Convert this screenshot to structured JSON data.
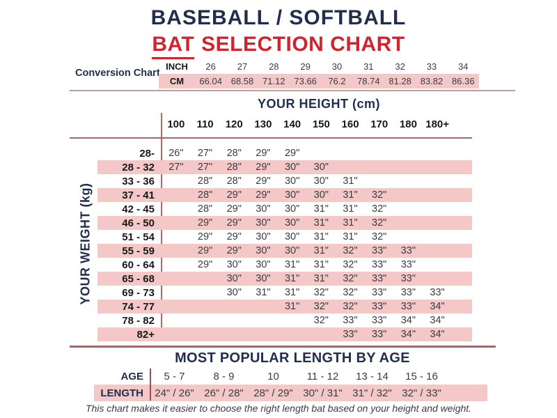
{
  "title": {
    "line1": "BASEBALL / SOFTBALL",
    "line2_underlined": "BAT",
    "line2_rest": "SELECTION CHART"
  },
  "conversion": {
    "label": "Conversion Chart",
    "inch_label": "INCH",
    "cm_label": "CM"
  },
  "main_chart": {
    "height_axis_label": "YOUR HEIGHT (cm)",
    "weight_axis_label": "YOUR WEIGHT (kg)"
  },
  "age_table": {
    "title": "MOST POPULAR LENGTH BY AGE",
    "age_label": "AGE",
    "length_label": "LENGTH"
  },
  "footer": "This chart makes it easier to choose the right length bat based on your height and weight.",
  "colors": {
    "navy": "#1f2d4f",
    "red": "#d2232e",
    "pink": "#f4c8c6",
    "line_rose": "#c79c9c",
    "line_maroon": "#9c6a6a",
    "vline_red": "#c4625c",
    "vline_dark": "#8d5252",
    "text_dark": "#3a3b42",
    "text_black": "#17181d"
  },
  "chart_data": {
    "type": "table",
    "title": "BASEBALL / SOFTBALL BAT SELECTION CHART",
    "conversion": {
      "inch": [
        "26",
        "27",
        "28",
        "29",
        "30",
        "31",
        "32",
        "33",
        "34"
      ],
      "cm": [
        "66.04",
        "68.58",
        "71.12",
        "73.66",
        "76.2",
        "78.74",
        "81.28",
        "83.82",
        "86.36"
      ]
    },
    "height_cm_columns": [
      "100",
      "110",
      "120",
      "130",
      "140",
      "150",
      "160",
      "170",
      "180",
      "180+"
    ],
    "rows": [
      {
        "weight": "28-",
        "values": [
          "26\"",
          "27\"",
          "28\"",
          "29\"",
          "29\"",
          "",
          "",
          "",
          "",
          ""
        ]
      },
      {
        "weight": "28 - 32",
        "values": [
          "27\"",
          "27\"",
          "28\"",
          "29\"",
          "30\"",
          "30\"",
          "",
          "",
          "",
          ""
        ]
      },
      {
        "weight": "33 - 36",
        "values": [
          "",
          "28\"",
          "28\"",
          "29\"",
          "30\"",
          "30\"",
          "31\"",
          "",
          "",
          ""
        ]
      },
      {
        "weight": "37 - 41",
        "values": [
          "",
          "28\"",
          "29\"",
          "29\"",
          "30\"",
          "30\"",
          "31\"",
          "32\"",
          "",
          ""
        ]
      },
      {
        "weight": "42 - 45",
        "values": [
          "",
          "28\"",
          "29\"",
          "30\"",
          "30\"",
          "31\"",
          "31\"",
          "32\"",
          "",
          ""
        ]
      },
      {
        "weight": "46 - 50",
        "values": [
          "",
          "29\"",
          "29\"",
          "30\"",
          "30\"",
          "31\"",
          "31\"",
          "32\"",
          "",
          ""
        ]
      },
      {
        "weight": "51 - 54",
        "values": [
          "",
          "29\"",
          "29\"",
          "30\"",
          "30\"",
          "31\"",
          "31\"",
          "32\"",
          "",
          ""
        ]
      },
      {
        "weight": "55 - 59",
        "values": [
          "",
          "29\"",
          "29\"",
          "30\"",
          "30\"",
          "31\"",
          "32\"",
          "33\"",
          "33\"",
          ""
        ]
      },
      {
        "weight": "60 - 64",
        "values": [
          "",
          "29\"",
          "30\"",
          "30\"",
          "31\"",
          "31\"",
          "32\"",
          "33\"",
          "33\"",
          ""
        ]
      },
      {
        "weight": "65 - 68",
        "values": [
          "",
          "",
          "30\"",
          "30\"",
          "31\"",
          "31\"",
          "32\"",
          "33\"",
          "33\"",
          ""
        ]
      },
      {
        "weight": "69 - 73",
        "values": [
          "",
          "",
          "30\"",
          "31\"",
          "31\"",
          "32\"",
          "32\"",
          "33\"",
          "33\"",
          "33\""
        ]
      },
      {
        "weight": "74 - 77",
        "values": [
          "",
          "",
          "",
          "",
          "31\"",
          "32\"",
          "32\"",
          "33\"",
          "33\"",
          "34\""
        ]
      },
      {
        "weight": "78 - 82",
        "values": [
          "",
          "",
          "",
          "",
          "",
          "32\"",
          "33\"",
          "33\"",
          "34\"",
          "34\""
        ]
      },
      {
        "weight": "82+",
        "values": [
          "",
          "",
          "",
          "",
          "",
          "",
          "33\"",
          "33\"",
          "34\"",
          "34\""
        ]
      }
    ],
    "age": {
      "groups": [
        "5 - 7",
        "8 - 9",
        "10",
        "11 - 12",
        "13 - 14",
        "15 - 16"
      ],
      "lengths": [
        "24\" / 26\"",
        "26\" / 28\"",
        "28\" / 29\"",
        "30\" / 31\"",
        "31\" / 32\"",
        "32\" / 33\""
      ]
    }
  }
}
